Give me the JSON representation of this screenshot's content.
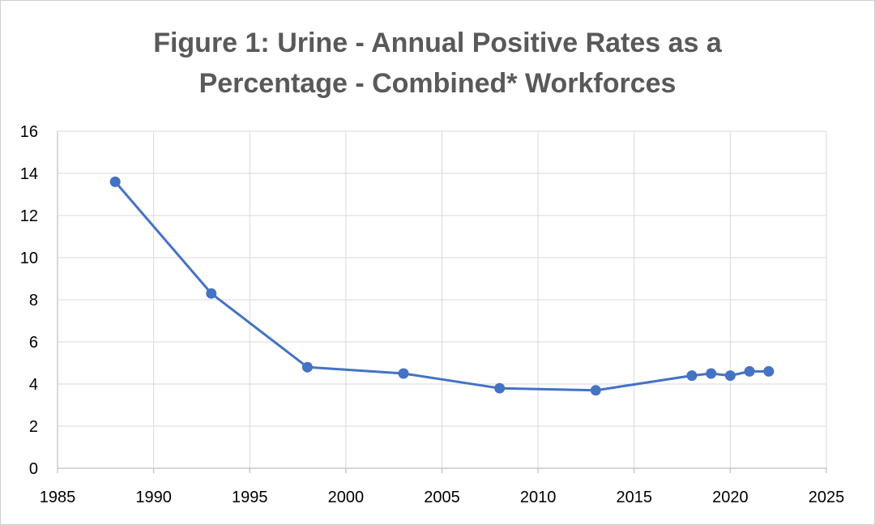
{
  "chart_data": {
    "type": "scatter",
    "title_lines": [
      "Figure 1: Urine - Annual Positive Rates as a",
      "Percentage - Combined* Workforces"
    ],
    "xlabel": "",
    "ylabel": "",
    "xlim": [
      1985,
      2025
    ],
    "ylim": [
      0,
      16
    ],
    "x_ticks": [
      1985,
      1990,
      1995,
      2000,
      2005,
      2010,
      2015,
      2020,
      2025
    ],
    "y_ticks": [
      0,
      2,
      4,
      6,
      8,
      10,
      12,
      14,
      16
    ],
    "grid": true,
    "legend": "none",
    "series": [
      {
        "color": "#4472C4",
        "marker": "circle",
        "line": true,
        "points": [
          {
            "x": 1988,
            "y": 13.6
          },
          {
            "x": 1993,
            "y": 8.3
          },
          {
            "x": 1998,
            "y": 4.8
          },
          {
            "x": 2003,
            "y": 4.5
          },
          {
            "x": 2008,
            "y": 3.8
          },
          {
            "x": 2013,
            "y": 3.7
          },
          {
            "x": 2018,
            "y": 4.4
          },
          {
            "x": 2019,
            "y": 4.5
          },
          {
            "x": 2020,
            "y": 4.4
          },
          {
            "x": 2021,
            "y": 4.6
          },
          {
            "x": 2022,
            "y": 4.6
          }
        ]
      }
    ]
  }
}
